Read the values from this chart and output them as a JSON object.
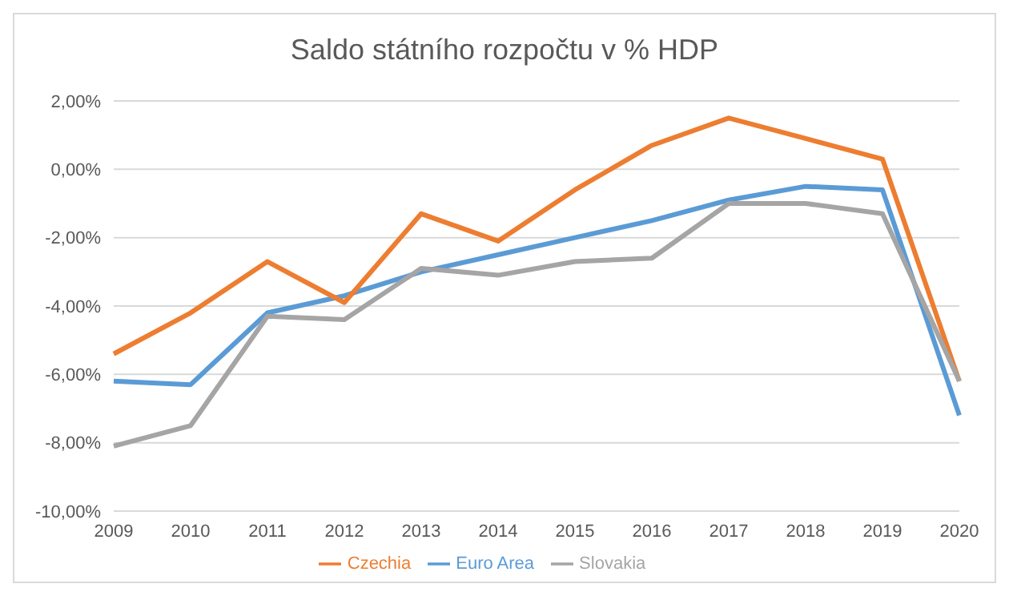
{
  "chart_data": {
    "type": "line",
    "title": "Saldo státního rozpočtu v % HDP",
    "categories": [
      "2009",
      "2010",
      "2011",
      "2012",
      "2013",
      "2014",
      "2015",
      "2016",
      "2017",
      "2018",
      "2019",
      "2020"
    ],
    "series": [
      {
        "name": "Euro Area",
        "color": "#5b9bd5",
        "values": [
          -6.2,
          -6.3,
          -4.2,
          -3.7,
          -3.0,
          -2.5,
          -2.0,
          -1.5,
          -0.9,
          -0.5,
          -0.6,
          -7.2
        ]
      },
      {
        "name": "Czechia",
        "color": "#ed7d31",
        "values": [
          -5.4,
          -4.2,
          -2.7,
          -3.9,
          -1.3,
          -2.1,
          -0.6,
          0.7,
          1.5,
          0.9,
          0.3,
          -6.2
        ]
      },
      {
        "name": "Slovakia",
        "color": "#a5a5a5",
        "values": [
          -8.1,
          -7.5,
          -4.3,
          -4.4,
          -2.9,
          -3.1,
          -2.7,
          -2.6,
          -1.0,
          -1.0,
          -1.3,
          -6.2
        ]
      }
    ],
    "ylim": [
      -10,
      2
    ],
    "yticks": [
      {
        "value": -10,
        "label": "-10,00%"
      },
      {
        "value": -8,
        "label": "-8,00%"
      },
      {
        "value": -6,
        "label": "-6,00%"
      },
      {
        "value": -4,
        "label": "-4,00%"
      },
      {
        "value": -2,
        "label": "-2,00%"
      },
      {
        "value": 0,
        "label": "0,00%"
      },
      {
        "value": 2,
        "label": "2,00%"
      }
    ],
    "grid": "y",
    "legend": "bottom",
    "marker": "none",
    "line_style": "solid"
  }
}
